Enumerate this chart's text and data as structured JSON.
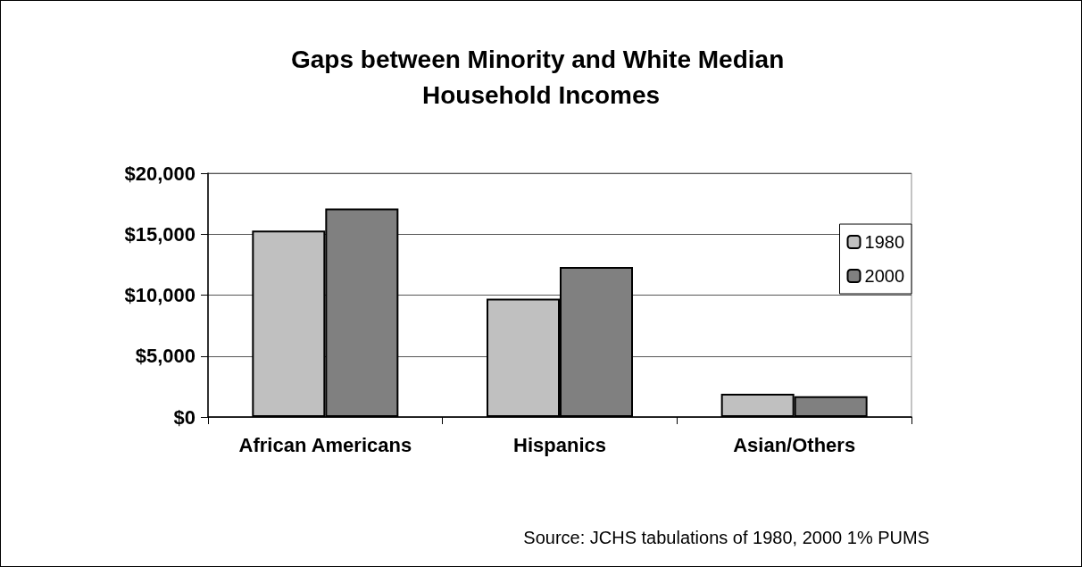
{
  "chart_data": {
    "type": "bar",
    "title": "Gaps between Minority and White Median Household Incomes",
    "categories": [
      "African Americans",
      "Hispanics",
      "Asian/Others"
    ],
    "series": [
      {
        "name": "1980",
        "color": "#c0c0c0",
        "values": [
          15300,
          9700,
          1900
        ]
      },
      {
        "name": "2000",
        "color": "#808080",
        "values": [
          17100,
          12300,
          1700
        ]
      }
    ],
    "ylim": [
      0,
      20000
    ],
    "yticks": [
      {
        "value": 0,
        "label": "$0"
      },
      {
        "value": 5000,
        "label": "$5,000"
      },
      {
        "value": 10000,
        "label": "$10,000"
      },
      {
        "value": 15000,
        "label": "$15,000"
      },
      {
        "value": 20000,
        "label": "$20,000"
      }
    ],
    "grid": "y",
    "legend": "right",
    "annotations": [
      "Source: JCHS tabulations of 1980, 2000 1% PUMS"
    ]
  }
}
